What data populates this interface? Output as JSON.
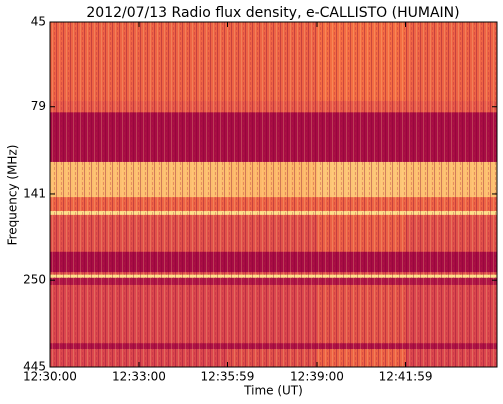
{
  "chart_data": {
    "type": "heatmap",
    "title": "2012/07/13  Radio flux density, e-CALLISTO (HUMAIN)",
    "x_label": "Time (UT)",
    "y_label": "Frequency (MHz)",
    "x_edges": [
      "12:30:00",
      "12:33:00",
      "12:36:00",
      "12:39:00",
      "12:42:00",
      "12:45:04"
    ],
    "y_edges": [
      45,
      76,
      82,
      114,
      144,
      158,
      162,
      207,
      237,
      241,
      246,
      258,
      380,
      395,
      445
    ],
    "values": [
      [
        0.5,
        0.5,
        0.5,
        0.55,
        0.5
      ],
      [
        0.45,
        0.45,
        0.45,
        0.45,
        0.45
      ],
      [
        0.05,
        0.05,
        0.05,
        0.05,
        0.05
      ],
      [
        0.8,
        0.8,
        0.78,
        0.82,
        0.8
      ],
      [
        0.5,
        0.5,
        0.5,
        0.5,
        0.5
      ],
      [
        0.9,
        0.9,
        0.9,
        0.9,
        0.9
      ],
      [
        0.4,
        0.4,
        0.4,
        0.48,
        0.4
      ],
      [
        0.05,
        0.05,
        0.05,
        0.05,
        0.05
      ],
      [
        0.4,
        0.4,
        0.4,
        0.4,
        0.4
      ],
      [
        0.9,
        0.9,
        0.9,
        0.9,
        0.9
      ],
      [
        0.1,
        0.1,
        0.1,
        0.1,
        0.1
      ],
      [
        0.35,
        0.35,
        0.35,
        0.42,
        0.35
      ],
      [
        0.08,
        0.08,
        0.08,
        0.08,
        0.08
      ],
      [
        0.35,
        0.35,
        0.4,
        0.5,
        0.35
      ]
    ],
    "colorscale": [
      [
        0,
        "#9e0142"
      ],
      [
        0.3,
        "#d53e4f"
      ],
      [
        0.55,
        "#f46d43"
      ],
      [
        0.75,
        "#fdae61"
      ],
      [
        0.9,
        "#fee08b"
      ],
      [
        1,
        "#ffffbf"
      ]
    ],
    "xlim": [
      "12:30:00",
      "12:45:04"
    ],
    "xticks": [
      "12:30:00",
      "12:33:00",
      "12:35:59",
      "12:39:00",
      "12:41:59"
    ],
    "ylim": [
      45,
      445
    ],
    "yticks": [
      45,
      79,
      141,
      250,
      445
    ],
    "yscale": "log",
    "y_inverted": true
  }
}
